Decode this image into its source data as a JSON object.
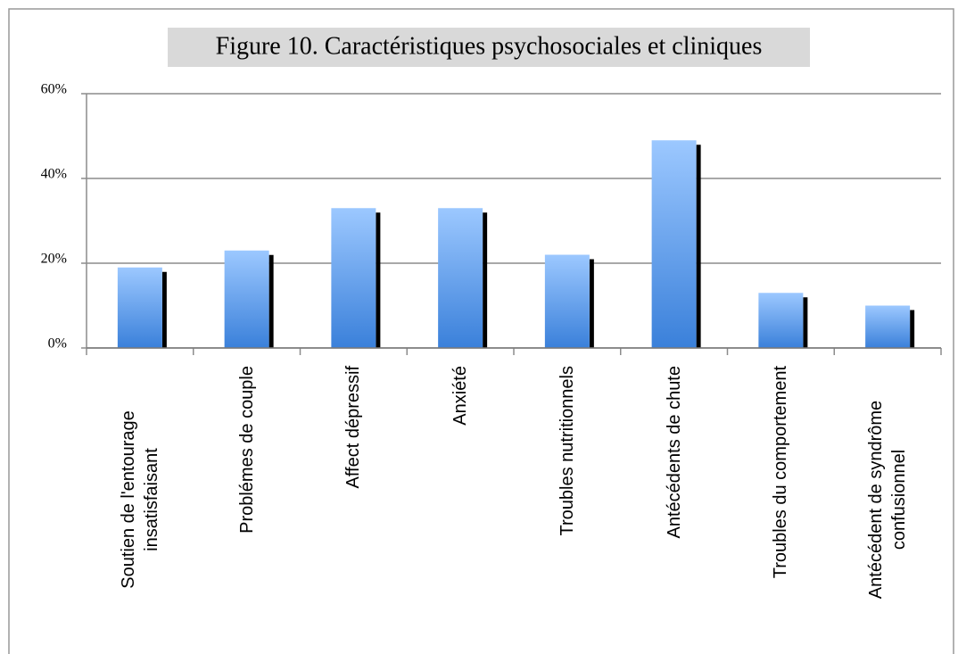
{
  "chart_data": {
    "type": "bar",
    "title": "Figure 10. Caractéristiques psychosociales et cliniques",
    "categories": [
      "Soutien de l'entourage insatisfaisant",
      "Problémes de couple",
      "Affect dépressif",
      "Anxiété",
      "Troubles nutritionnels",
      "Antécédents de chute",
      "Troubles du comportement",
      "Antécédent de syndrôme confusionnel"
    ],
    "values": [
      19,
      23,
      33,
      33,
      22,
      49,
      13,
      10
    ],
    "color": "#5a9be8",
    "ylim": [
      0,
      60
    ],
    "yticks": [
      {
        "value": 0,
        "label": "0%"
      },
      {
        "value": 20,
        "label": "20%"
      },
      {
        "value": 40,
        "label": "40%"
      },
      {
        "value": 60,
        "label": "60%"
      }
    ],
    "grid": true
  }
}
